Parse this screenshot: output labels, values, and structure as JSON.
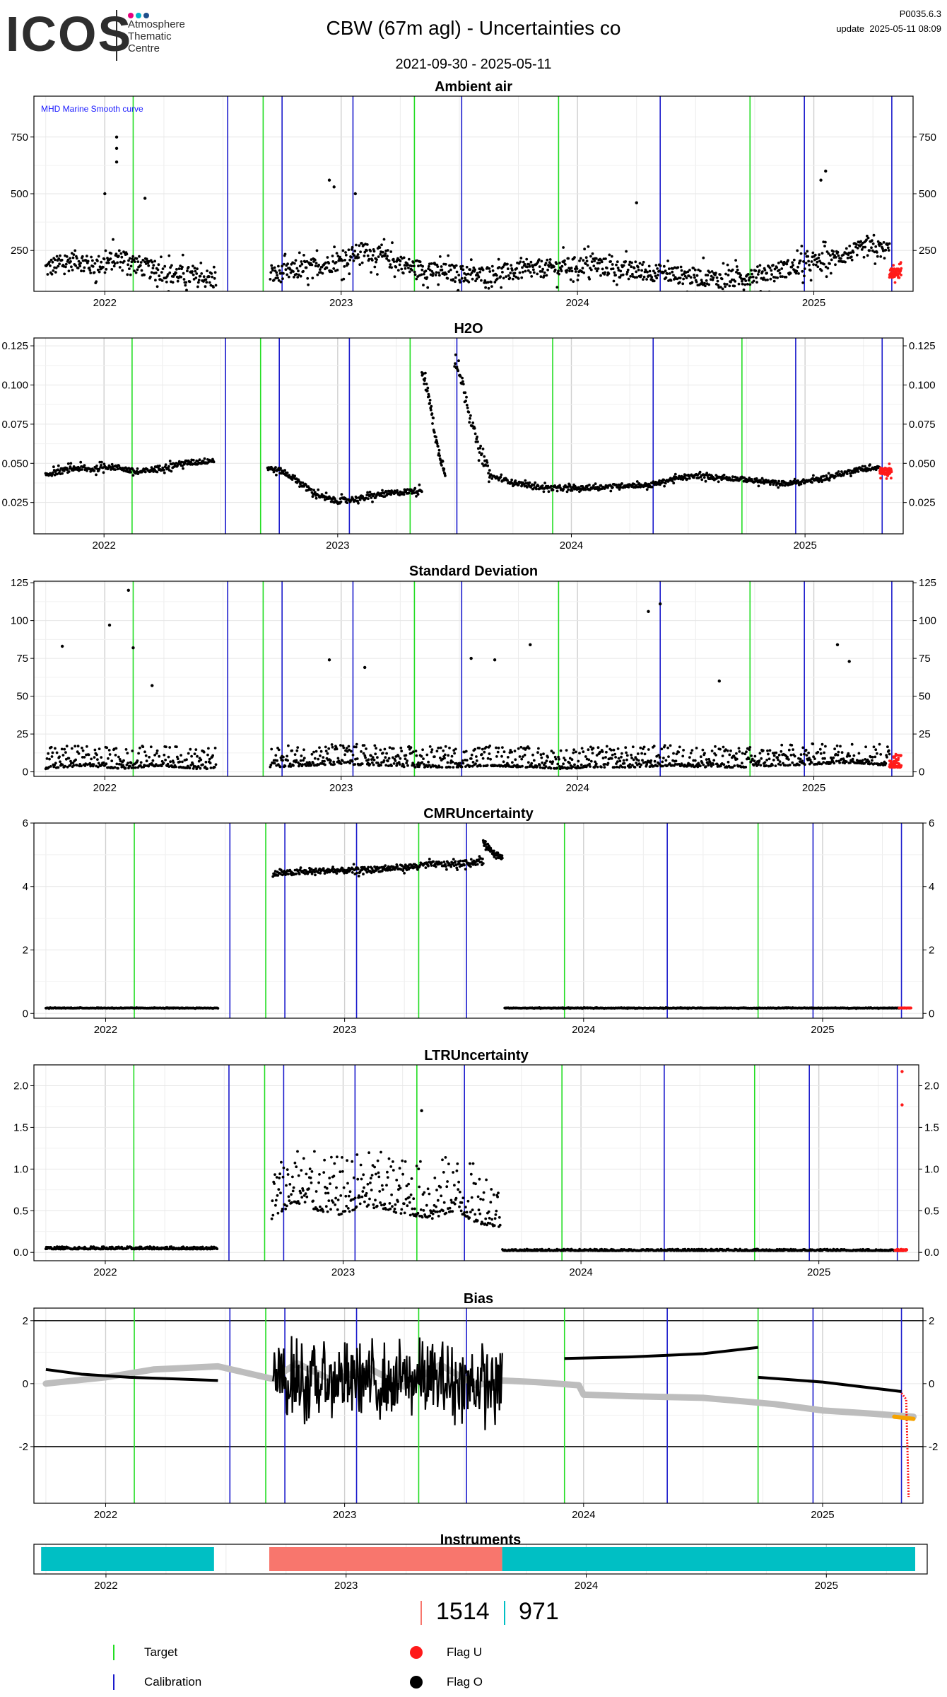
{
  "header": {
    "logo_mark": "ICOS",
    "logo_lines": [
      "Atmosphere",
      "Thematic",
      "Centre"
    ],
    "logo_dot_colors": [
      "#e6007e",
      "#00b4c8",
      "#1e4f8c"
    ],
    "title": "CBW  (67m agl) - Uncertainties co",
    "date_range": "2021-09-30 - 2025-05-11",
    "version_code": "P0035.6.3",
    "update_label": "update",
    "update_time": "2025-05-11 08:09"
  },
  "colors": {
    "target": "#22dd22",
    "calibration": "#1a1acc",
    "flag_u": "#ff1a1a",
    "flag_o": "#000000",
    "smooth_curve": "#bdbdbd",
    "instrument_a": "#00bfc4",
    "instrument_b": "#f8766d",
    "points": "#000000",
    "annotation": "#1a1aff"
  },
  "markers": {
    "target_years": [
      2022.12,
      2022.67,
      2023.31,
      2023.92,
      2024.73
    ],
    "calibration_years": [
      2022.52,
      2022.75,
      2023.05,
      2023.51,
      2024.35,
      2024.96,
      2025.33
    ]
  },
  "chart_data": [
    {
      "id": "ambient",
      "type": "scatter",
      "title": "Ambient air",
      "annotation": "MHD Marine Smooth curve",
      "xlim": [
        2021.7,
        2025.42
      ],
      "ylim": [
        70,
        930
      ],
      "yticks": [
        250,
        500,
        750
      ],
      "ytick_labels": [
        "250",
        "500",
        "750"
      ],
      "x_tick_labels": [
        "2022",
        "2023",
        "2024",
        "2025"
      ],
      "segments": [
        {
          "from": 2021.75,
          "to": 2022.47,
          "values": [
            170,
            190,
            210,
            180,
            200,
            220,
            185,
            160,
            150,
            140,
            130,
            120
          ],
          "spread": 120
        },
        {
          "from": 2022.7,
          "to": 2025.32,
          "values": [
            140,
            160,
            180,
            200,
            250,
            220,
            180,
            160,
            150,
            140,
            150,
            160,
            170,
            180,
            190,
            170,
            160,
            150,
            140,
            130,
            120,
            140,
            160,
            180,
            200,
            230,
            260,
            250
          ],
          "spread": 110
        },
        {
          "from": 2025.32,
          "to": 2025.37,
          "values": [
            150,
            150
          ],
          "spread": 60,
          "flag": "U"
        }
      ],
      "outliers": [
        [
          2022.05,
          750
        ],
        [
          2022.05,
          700
        ],
        [
          2022.05,
          640
        ],
        [
          2022.0,
          500
        ],
        [
          2022.17,
          480
        ],
        [
          2022.95,
          560
        ],
        [
          2022.97,
          530
        ],
        [
          2023.06,
          500
        ],
        [
          2024.25,
          460
        ],
        [
          2025.05,
          600
        ],
        [
          2025.03,
          560
        ]
      ]
    },
    {
      "id": "h2o",
      "type": "scatter",
      "title": "H2O",
      "xlim": [
        2021.7,
        2025.42
      ],
      "ylim": [
        0.005,
        0.13
      ],
      "yticks": [
        0.025,
        0.05,
        0.075,
        0.1,
        0.125
      ],
      "ytick_labels": [
        "0.025",
        "0.050",
        "0.075",
        "0.100",
        "0.125"
      ],
      "x_tick_labels": [
        "2022",
        "2023",
        "2024",
        "2025"
      ],
      "segments": [
        {
          "from": 2021.75,
          "to": 2022.47,
          "values": [
            0.043,
            0.045,
            0.047,
            0.046,
            0.048,
            0.047,
            0.044,
            0.046,
            0.048,
            0.05,
            0.051,
            0.052
          ],
          "spread": 0.005
        },
        {
          "from": 2022.7,
          "to": 2023.36,
          "values": [
            0.047,
            0.045,
            0.04,
            0.033,
            0.028,
            0.026,
            0.027,
            0.028,
            0.03,
            0.031,
            0.032,
            0.033
          ],
          "spread": 0.005
        },
        {
          "from": 2023.36,
          "to": 2023.46,
          "values": [
            0.11,
            0.09,
            0.06,
            0.045
          ],
          "spread": 0.01
        },
        {
          "from": 2023.5,
          "to": 2023.65,
          "values": [
            0.115,
            0.1,
            0.075,
            0.055,
            0.045
          ],
          "spread": 0.01
        },
        {
          "from": 2023.65,
          "to": 2025.32,
          "values": [
            0.042,
            0.038,
            0.035,
            0.034,
            0.034,
            0.035,
            0.036,
            0.036,
            0.04,
            0.042,
            0.041,
            0.04,
            0.038,
            0.037,
            0.039,
            0.042,
            0.046,
            0.047
          ],
          "spread": 0.004
        },
        {
          "from": 2025.32,
          "to": 2025.37,
          "values": [
            0.045,
            0.045
          ],
          "spread": 0.006,
          "flag": "U"
        }
      ],
      "outliers": []
    },
    {
      "id": "stddev",
      "type": "scatter",
      "title": "Standard Deviation",
      "xlim": [
        2021.7,
        2025.42
      ],
      "ylim": [
        -3,
        126
      ],
      "yticks": [
        0,
        25,
        50,
        75,
        100,
        125
      ],
      "ytick_labels": [
        "0",
        "25",
        "50",
        "75",
        "100",
        "125"
      ],
      "x_tick_labels": [
        "2022",
        "2023",
        "2024",
        "2025"
      ],
      "segments": [
        {
          "from": 2021.75,
          "to": 2022.47,
          "values": [
            2,
            3,
            4,
            3,
            2,
            3,
            4,
            3,
            2,
            2
          ],
          "spread": 14
        },
        {
          "from": 2022.7,
          "to": 2025.32,
          "values": [
            3,
            4,
            5,
            4,
            3,
            3,
            4,
            3,
            2,
            3,
            3,
            4,
            3,
            3,
            4,
            5,
            6,
            4
          ],
          "spread": 14
        },
        {
          "from": 2025.32,
          "to": 2025.37,
          "values": [
            3,
            3
          ],
          "spread": 10,
          "flag": "U"
        }
      ],
      "outliers": [
        [
          2022.02,
          97
        ],
        [
          2022.1,
          120
        ],
        [
          2022.12,
          82
        ],
        [
          2021.82,
          83
        ],
        [
          2022.2,
          57
        ],
        [
          2022.95,
          74
        ],
        [
          2023.1,
          69
        ],
        [
          2023.55,
          75
        ],
        [
          2023.65,
          74
        ],
        [
          2023.8,
          84
        ],
        [
          2024.3,
          106
        ],
        [
          2024.35,
          111
        ],
        [
          2024.6,
          60
        ],
        [
          2025.1,
          84
        ],
        [
          2025.15,
          73
        ]
      ]
    },
    {
      "id": "cmr",
      "type": "scatter",
      "title": "CMRUncertainty",
      "xlim": [
        2021.7,
        2025.42
      ],
      "ylim": [
        -0.15,
        6
      ],
      "yticks": [
        0,
        2,
        4,
        6
      ],
      "ytick_labels": [
        "0",
        "2",
        "4",
        "6"
      ],
      "x_tick_labels": [
        "2022",
        "2023",
        "2024",
        "2025"
      ],
      "segments": [
        {
          "from": 2021.75,
          "to": 2022.47,
          "values": [
            0.17,
            0.17
          ],
          "spread": 0.02
        },
        {
          "from": 2022.7,
          "to": 2023.58,
          "values": [
            4.4,
            4.45,
            4.5,
            4.5,
            4.55,
            4.6,
            4.7,
            4.7,
            4.8
          ],
          "spread": 0.25
        },
        {
          "from": 2023.58,
          "to": 2023.66,
          "values": [
            5.4,
            5.1,
            4.9
          ],
          "spread": 0.25
        },
        {
          "from": 2023.67,
          "to": 2025.32,
          "values": [
            0.17,
            0.17
          ],
          "spread": 0.02
        },
        {
          "from": 2025.32,
          "to": 2025.37,
          "values": [
            0.17,
            0.17
          ],
          "spread": 0.01,
          "flag": "U"
        }
      ],
      "outliers": []
    },
    {
      "id": "ltr",
      "type": "scatter",
      "title": "LTRUncertainty",
      "xlim": [
        2021.7,
        2025.42
      ],
      "ylim": [
        -0.1,
        2.25
      ],
      "yticks": [
        0,
        0.5,
        1,
        1.5,
        2
      ],
      "ytick_labels": [
        "0.0",
        "0.5",
        "1.0",
        "1.5",
        "2.0"
      ],
      "x_tick_labels": [
        "2022",
        "2023",
        "2024",
        "2025"
      ],
      "segments": [
        {
          "from": 2021.75,
          "to": 2022.47,
          "values": [
            0.04,
            0.04
          ],
          "spread": 0.03
        },
        {
          "from": 2022.7,
          "to": 2023.66,
          "values": [
            0.4,
            0.6,
            0.5,
            0.45,
            0.55,
            0.5,
            0.45,
            0.4,
            0.5,
            0.35,
            0.3
          ],
          "spread": 0.7
        },
        {
          "from": 2023.67,
          "to": 2025.32,
          "values": [
            0.02,
            0.02
          ],
          "spread": 0.02
        },
        {
          "from": 2025.32,
          "to": 2025.37,
          "values": [
            0.02,
            0.02
          ],
          "spread": 0.02,
          "flag": "U"
        }
      ],
      "outliers": [
        [
          2023.33,
          1.7
        ],
        [
          2025.35,
          2.17
        ],
        [
          2025.35,
          1.77
        ]
      ]
    },
    {
      "id": "bias",
      "type": "line",
      "title": "Bias",
      "xlim": [
        2021.7,
        2025.42
      ],
      "ylim": [
        -3.8,
        2.4
      ],
      "yticks": [
        -2,
        0,
        2
      ],
      "ytick_labels": [
        "-2",
        "0",
        "2"
      ],
      "hlines": [
        -2,
        2
      ],
      "x_tick_labels": [
        "2022",
        "2023",
        "2024",
        "2025"
      ],
      "series": [
        {
          "kind": "bias",
          "points": [
            [
              2021.75,
              0.45
            ],
            [
              2021.9,
              0.3
            ],
            [
              2022.1,
              0.2
            ],
            [
              2022.3,
              0.15
            ],
            [
              2022.47,
              0.1
            ]
          ]
        },
        {
          "kind": "bias",
          "points": [
            [
              2022.7,
              0.1
            ],
            [
              2023.66,
              0.0
            ]
          ],
          "noise": 1.5
        },
        {
          "kind": "bias",
          "points": [
            [
              2023.92,
              0.8
            ],
            [
              2024.2,
              0.85
            ],
            [
              2024.5,
              0.95
            ],
            [
              2024.73,
              1.15
            ]
          ]
        },
        {
          "kind": "bias",
          "points": [
            [
              2024.73,
              0.2
            ],
            [
              2025.0,
              0.05
            ],
            [
              2025.33,
              -0.25
            ]
          ]
        },
        {
          "kind": "flag_u",
          "points": [
            [
              2025.33,
              -0.3
            ],
            [
              2025.35,
              -0.5
            ],
            [
              2025.36,
              -3.6
            ]
          ]
        },
        {
          "kind": "flag_orange",
          "points": [
            [
              2025.3,
              -1.05
            ],
            [
              2025.38,
              -1.12
            ]
          ]
        },
        {
          "kind": "smooth",
          "points": [
            [
              2021.75,
              0.0
            ],
            [
              2022.0,
              0.2
            ],
            [
              2022.2,
              0.45
            ],
            [
              2022.47,
              0.55
            ],
            [
              2022.7,
              0.15
            ],
            [
              2022.8,
              0.65
            ],
            [
              2022.95,
              0.1
            ],
            [
              2023.1,
              0.5
            ],
            [
              2023.25,
              -0.1
            ],
            [
              2023.4,
              0.6
            ],
            [
              2023.55,
              -0.05
            ],
            [
              2023.66,
              0.1
            ],
            [
              2023.8,
              0.05
            ],
            [
              2023.98,
              -0.05
            ],
            [
              2024.0,
              -0.35
            ],
            [
              2024.2,
              -0.4
            ],
            [
              2024.5,
              -0.45
            ],
            [
              2024.8,
              -0.65
            ],
            [
              2025.0,
              -0.85
            ],
            [
              2025.2,
              -0.95
            ],
            [
              2025.38,
              -1.05
            ]
          ]
        }
      ]
    },
    {
      "id": "instruments",
      "type": "bar",
      "title": "Instruments",
      "xlim": [
        2021.7,
        2025.42
      ],
      "x_tick_labels": [
        "2022",
        "2023",
        "2024",
        "2025"
      ],
      "spans": [
        {
          "from": 2021.73,
          "to": 2022.45,
          "instrument": "971"
        },
        {
          "from": 2022.68,
          "to": 2023.65,
          "instrument": "1514"
        },
        {
          "from": 2023.65,
          "to": 2025.37,
          "instrument": "971"
        }
      ]
    }
  ],
  "instrument_legend": [
    {
      "label": "1514",
      "color": "#f8766d"
    },
    {
      "label": "971",
      "color": "#00bfc4"
    }
  ],
  "legend": {
    "target_label": "Target",
    "calibration_label": "Calibration",
    "flag_u_label": "Flag U",
    "flag_o_label": "Flag O"
  }
}
